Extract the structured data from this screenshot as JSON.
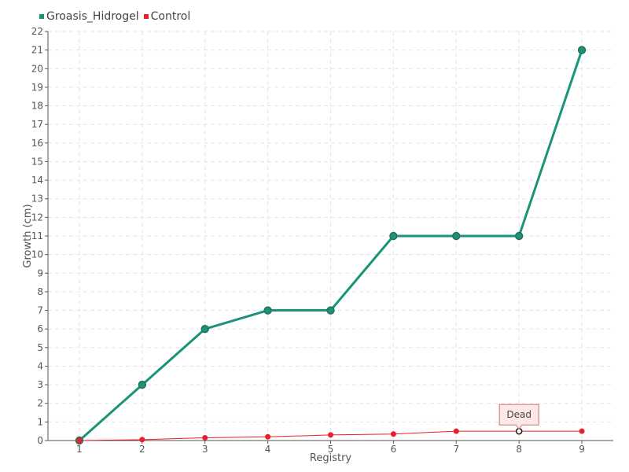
{
  "chart_data": {
    "type": "line",
    "x": [
      1,
      2,
      3,
      4,
      5,
      6,
      7,
      8,
      9
    ],
    "series": [
      {
        "name": "Groasis_Hidrogel",
        "color": "#1a9479",
        "values": [
          0,
          3,
          6,
          7,
          7,
          11,
          11,
          11,
          21
        ]
      },
      {
        "name": "Control",
        "color": "#e8202a",
        "values": [
          0,
          0.05,
          0.15,
          0.2,
          0.3,
          0.35,
          0.5,
          0.5,
          0.5
        ]
      }
    ],
    "xlabel": "Registry",
    "ylabel": "Growth (cm)",
    "xlim": [
      0.5,
      9.5
    ],
    "ylim": [
      0,
      22
    ],
    "yticks": [
      0,
      1,
      2,
      3,
      4,
      5,
      6,
      7,
      8,
      9,
      10,
      11,
      12,
      13,
      14,
      15,
      16,
      17,
      18,
      19,
      20,
      21,
      22
    ],
    "xticks": [
      1,
      2,
      3,
      4,
      5,
      6,
      7,
      8,
      9
    ],
    "grid": true,
    "legend_position": "top-left",
    "annotation": {
      "text": "Dead",
      "series": "Control",
      "x": 8,
      "y": 0.5
    }
  }
}
